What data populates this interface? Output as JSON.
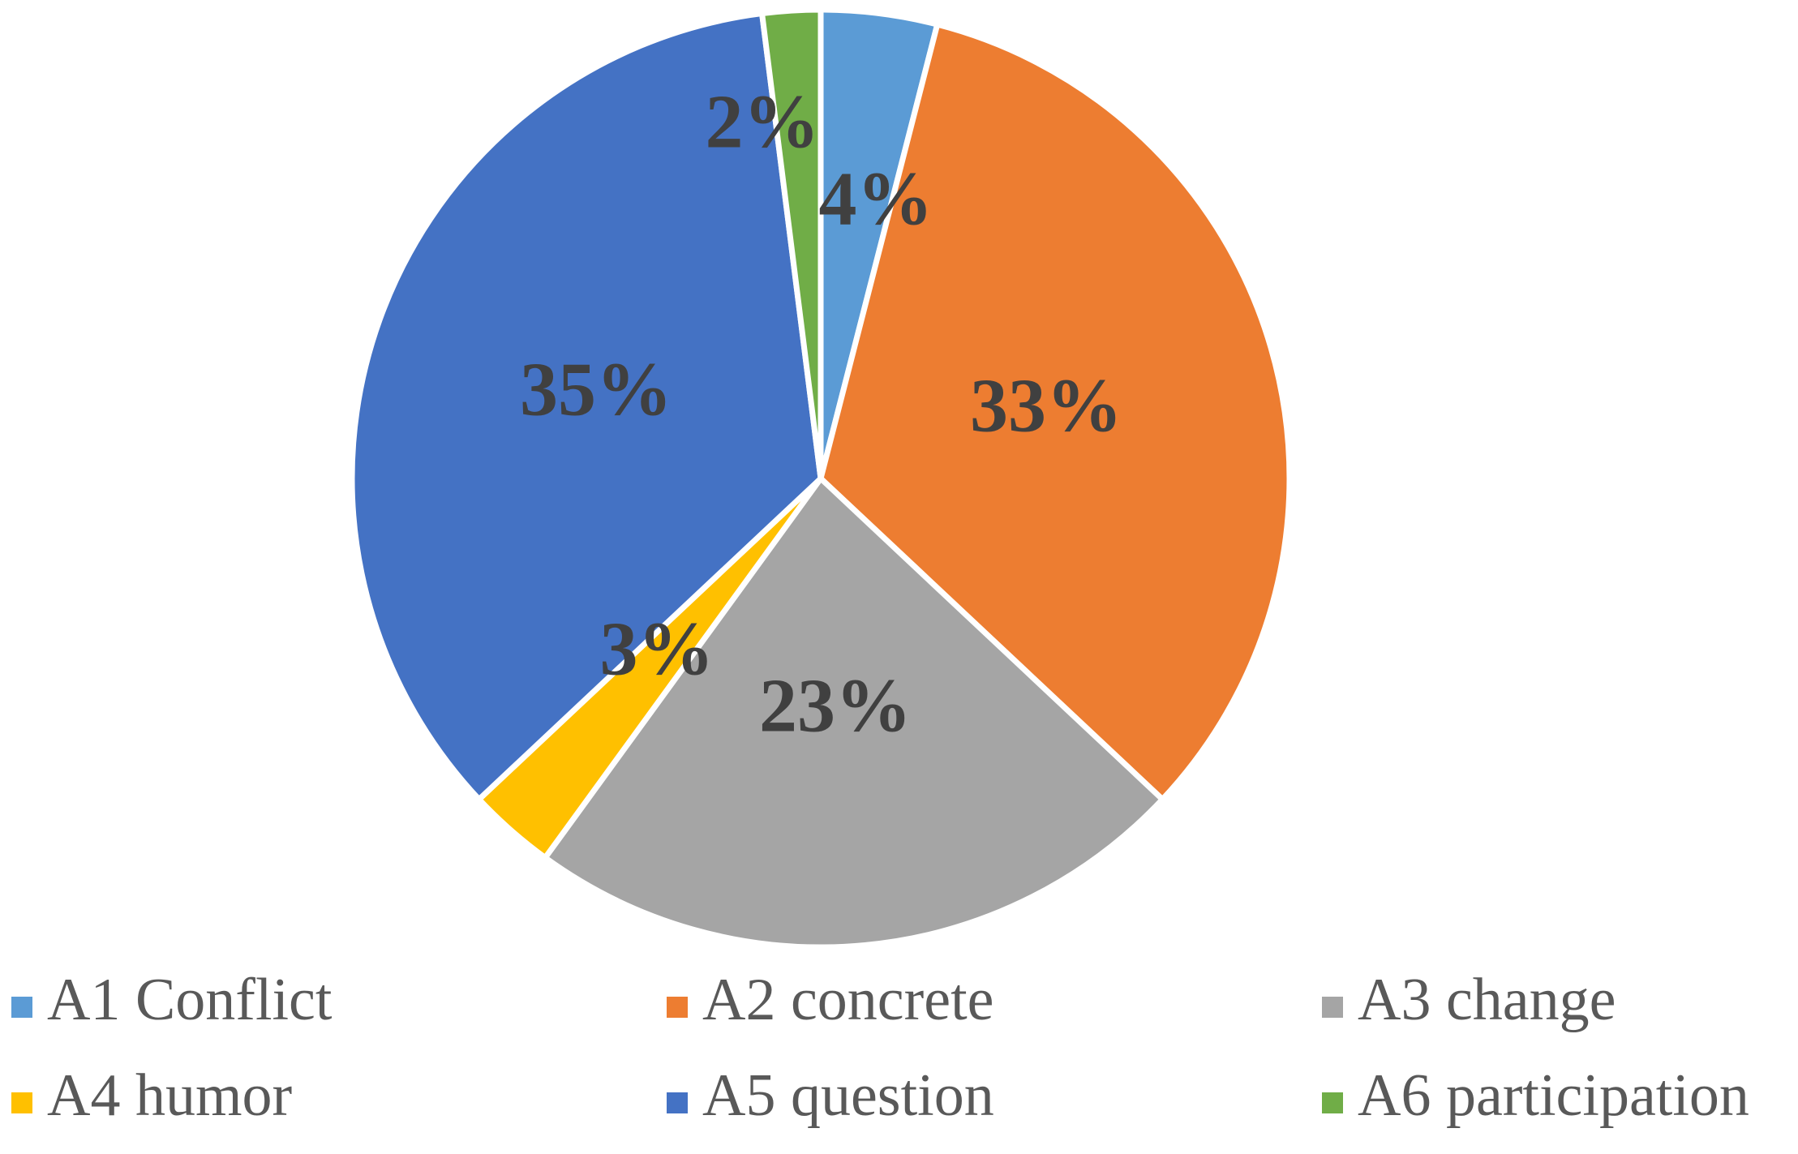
{
  "chart_data": {
    "type": "pie",
    "start_angle_deg": 0,
    "direction": "clockwise",
    "legend_position": "bottom",
    "slices": [
      {
        "label": "A1 Conflict",
        "value": 4,
        "value_label": "4%",
        "color": "#5B9BD5"
      },
      {
        "label": "A2 concrete",
        "value": 33,
        "value_label": "33%",
        "color": "#ED7D31"
      },
      {
        "label": "A3 change",
        "value": 23,
        "value_label": "23%",
        "color": "#A5A5A5"
      },
      {
        "label": "A4 humor",
        "value": 3,
        "value_label": "3%",
        "color": "#FFC000"
      },
      {
        "label": "A5 question",
        "value": 35,
        "value_label": "35%",
        "color": "#4472C4"
      },
      {
        "label": "A6 participation",
        "value": 2,
        "value_label": "2%",
        "color": "#70AD47"
      }
    ]
  }
}
